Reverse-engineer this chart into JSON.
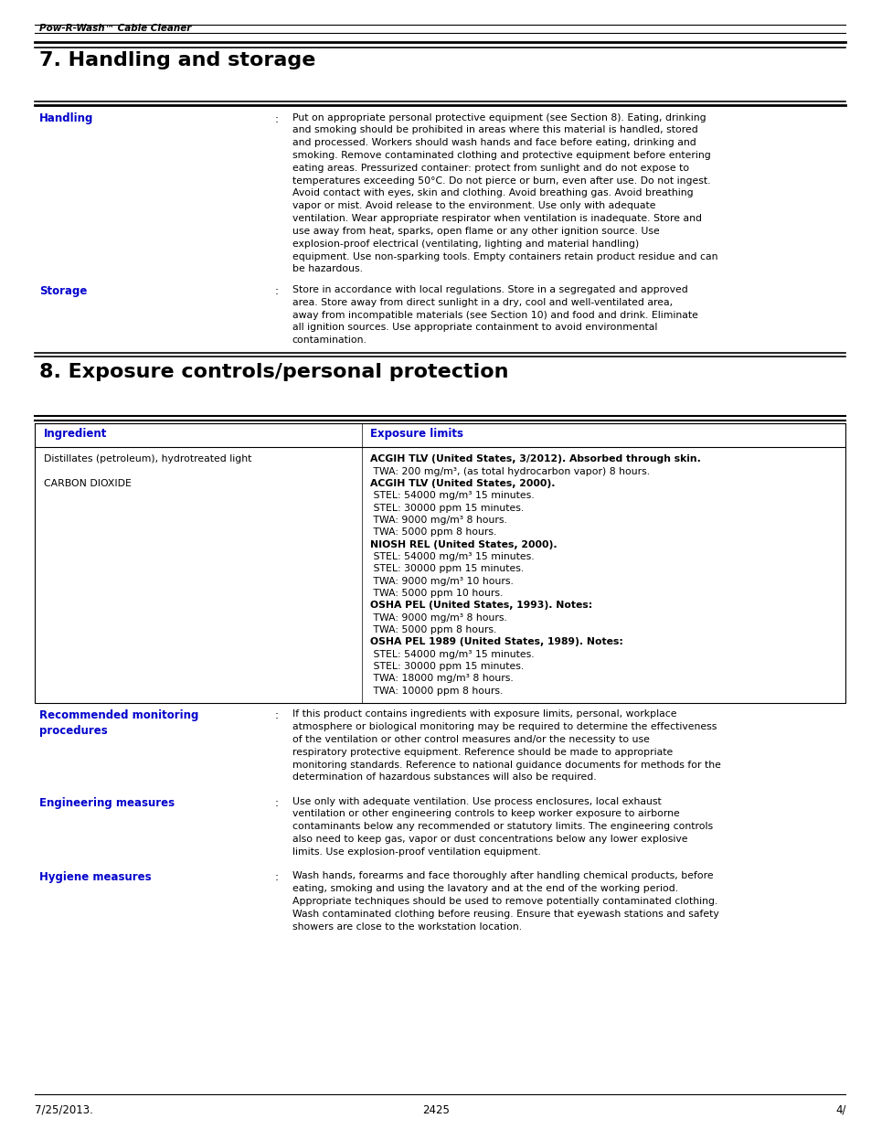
{
  "page_width": 9.54,
  "page_height": 12.35,
  "bg_color": "#ffffff",
  "header_italic": "Pow-R-Wash™ Cable Cleaner",
  "section7_title": "7. Handling and storage",
  "section8_title": "8. Exposure controls/personal protection",
  "blue_color": "#0000cc",
  "black_color": "#000000",
  "handling_label": "Handling",
  "handling_text": "Put on appropriate personal protective equipment (see Section 8).  Eating, drinking and smoking should be prohibited in areas where this material is handled, stored and processed.  Workers should wash hands and face before eating, drinking and smoking. Remove contaminated clothing and protective equipment before entering eating areas. Pressurized container: protect from sunlight and do not expose to temperatures exceeding 50°C.  Do not pierce or burn, even after use.  Do not ingest.  Avoid contact with eyes, skin and clothing.  Avoid breathing gas.  Avoid breathing vapor or mist.  Avoid release to the environment.  Use only with adequate ventilation.  Wear appropriate respirator when ventilation is inadequate.  Store and use away from heat, sparks, open flame or any other ignition source.  Use explosion-proof electrical (ventilating, lighting and material handling) equipment.  Use non-sparking tools.  Empty containers retain product residue and can be hazardous.",
  "storage_label": "Storage",
  "storage_text": "Store in accordance with local regulations.  Store in a segregated and approved area. Store away from direct sunlight in a dry, cool and well-ventilated area, away from incompatible materials (see Section 10) and food and drink.  Eliminate all ignition sources.  Use appropriate containment to avoid environmental contamination.",
  "table_header_ingredient": "Ingredient",
  "table_header_exposure": "Exposure limits",
  "ingredient1": "Distillates (petroleum), hydrotreated light",
  "ingredient2": "CARBON DIOXIDE",
  "exposure_lines": [
    {
      "text": "ACGIH TLV (United States, 3/2012). Absorbed through skin.",
      "bold": true
    },
    {
      "text": " TWA: 200 mg/m³, (as total hydrocarbon vapor) 8 hours.",
      "bold": false
    },
    {
      "text": "ACGIH TLV (United States, 2000).",
      "bold": true
    },
    {
      "text": " STEL: 54000 mg/m³ 15 minutes.",
      "bold": false
    },
    {
      "text": " STEL: 30000 ppm 15 minutes.",
      "bold": false
    },
    {
      "text": " TWA: 9000 mg/m³ 8 hours.",
      "bold": false
    },
    {
      "text": " TWA: 5000 ppm 8 hours.",
      "bold": false
    },
    {
      "text": "NIOSH REL (United States, 2000).",
      "bold": true
    },
    {
      "text": " STEL: 54000 mg/m³ 15 minutes.",
      "bold": false
    },
    {
      "text": " STEL: 30000 ppm 15 minutes.",
      "bold": false
    },
    {
      "text": " TWA: 9000 mg/m³ 10 hours.",
      "bold": false
    },
    {
      "text": " TWA: 5000 ppm 10 hours.",
      "bold": false
    },
    {
      "text": "OSHA PEL (United States, 1993). Notes:",
      "bold": true
    },
    {
      "text": " TWA: 9000 mg/m³ 8 hours.",
      "bold": false
    },
    {
      "text": " TWA: 5000 ppm 8 hours.",
      "bold": false
    },
    {
      "text": "OSHA PEL 1989 (United States, 1989). Notes:",
      "bold": true
    },
    {
      "text": " STEL: 54000 mg/m³ 15 minutes.",
      "bold": false
    },
    {
      "text": " STEL: 30000 ppm 15 minutes.",
      "bold": false
    },
    {
      "text": " TWA: 18000 mg/m³ 8 hours.",
      "bold": false
    },
    {
      "text": " TWA: 10000 ppm 8 hours.",
      "bold": false
    }
  ],
  "rec_monitoring_label": "Recommended monitoring\nprocedures",
  "rec_monitoring_text": "If this product contains ingredients with exposure limits, personal, workplace atmosphere or biological monitoring may be required to determine the effectiveness of the ventilation or other control measures and/or the necessity to use respiratory protective equipment.  Reference should be made to appropriate monitoring standards. Reference to national guidance documents for methods for the determination of hazardous substances will also be required.",
  "engineering_label": "Engineering measures",
  "engineering_text": "Use only with adequate ventilation.  Use process enclosures, local exhaust ventilation or other engineering controls to keep worker exposure to airborne contaminants below any recommended or statutory limits.  The engineering controls also need to keep gas, vapor or dust concentrations below any lower explosive limits.  Use explosion-proof ventilation equipment.",
  "hygiene_label": "Hygiene measures",
  "hygiene_text": "Wash hands, forearms and face thoroughly after handling chemical products, before eating, smoking and using the lavatory and at the end of the working period. Appropriate techniques should be used to remove potentially contaminated clothing. Wash contaminated clothing before reusing.  Ensure that eyewash stations and safety showers are close to the workstation location.",
  "footer_left": "7/25/2013.",
  "footer_center": "2425",
  "footer_right": "4/"
}
